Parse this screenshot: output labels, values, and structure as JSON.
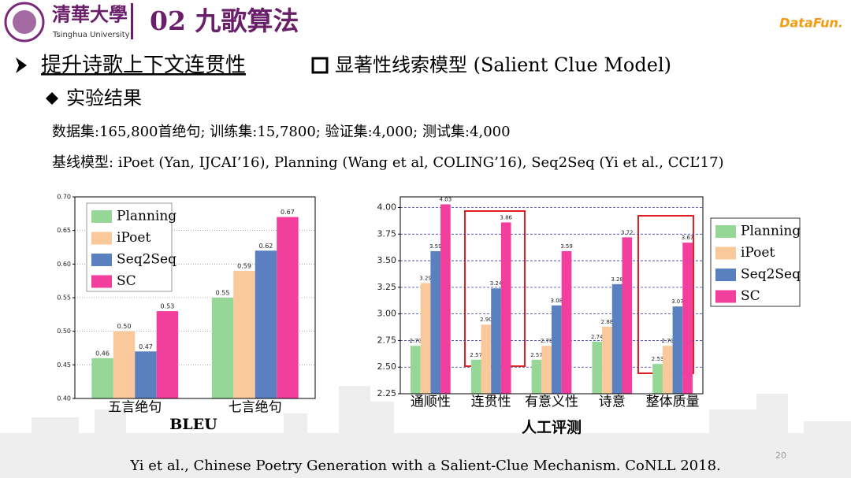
{
  "slide": {
    "section_title": "02 九歌算法",
    "logo_cn": "清華大學",
    "logo_en": "Tsinghua University",
    "brand": "DataFun.",
    "bullet": "提升诗歌上下文连贯性",
    "model": "显著性线索模型  (Salient Clue Model)",
    "sub_bullet": "实验结果",
    "dataset": "数据集:165,800首绝句; 训练集:15,7800; 验证集:4,000; 测试集:4,000",
    "baselines": "基线模型: iPoet (Yan, IJCAI’16), Planning (Wang et al, COLING’16), Seq2Seq (Yi et al., CCL’17)",
    "citation": "Yi et al., Chinese Poetry Generation with a Salient-Clue Mechanism. CoNLL 2018.",
    "page": "20"
  },
  "chart_data": [
    {
      "type": "bar",
      "xlabel": "BLEU",
      "categories": [
        "五言绝句",
        "七言绝句"
      ],
      "series": [
        {
          "name": "Planning",
          "color": "#96d696",
          "values": [
            0.46,
            0.55
          ],
          "value_labels": [
            "0.46",
            "0.55"
          ]
        },
        {
          "name": "iPoet",
          "color": "#f9c99b",
          "values": [
            0.5,
            0.59
          ],
          "value_labels": [
            "0.50",
            "0.59"
          ]
        },
        {
          "name": "Seq2Seq",
          "color": "#5b80c0",
          "values": [
            0.47,
            0.62
          ],
          "value_labels": [
            "0.47",
            "0.62"
          ]
        },
        {
          "name": "SC",
          "color": "#f23f9e",
          "values": [
            0.53,
            0.67
          ],
          "value_labels": [
            "0.53",
            "0.67"
          ]
        }
      ],
      "ylim": [
        0.4,
        0.7
      ],
      "yticks": [
        {
          "value": 0.4,
          "label": "0.40"
        },
        {
          "value": 0.45,
          "label": "0.45"
        },
        {
          "value": 0.5,
          "label": "0.50"
        },
        {
          "value": 0.55,
          "label": "0.55"
        },
        {
          "value": 0.6,
          "label": "0.60"
        },
        {
          "value": 0.65,
          "label": "0.65"
        },
        {
          "value": 0.7,
          "label": "0.70"
        }
      ],
      "grid": true,
      "legend": "upper left"
    },
    {
      "type": "bar",
      "xlabel": "人工评测",
      "categories": [
        "通顺性",
        "连贯性",
        "有意义性",
        "诗意",
        "整体质量"
      ],
      "series": [
        {
          "name": "Planning",
          "color": "#96d696",
          "values": [
            2.7,
            2.57,
            2.57,
            2.74,
            2.53
          ],
          "value_labels": [
            "2.70",
            "2.57",
            "2.57",
            "2.74",
            "2.53"
          ]
        },
        {
          "name": "iPoet",
          "color": "#f9c99b",
          "values": [
            3.29,
            2.9,
            2.7,
            2.88,
            2.7
          ],
          "value_labels": [
            "3.29",
            "2.90",
            "2.70",
            "2.88",
            "2.70"
          ]
        },
        {
          "name": "Seq2Seq",
          "color": "#5b80c0",
          "values": [
            3.59,
            3.24,
            3.08,
            3.28,
            3.07
          ],
          "value_labels": [
            "3.59",
            "3.24",
            "3.08",
            "3.28",
            "3.07"
          ]
        },
        {
          "name": "SC",
          "color": "#f23f9e",
          "values": [
            4.03,
            3.86,
            3.59,
            3.72,
            3.67
          ],
          "value_labels": [
            "4.03",
            "3.86",
            "3.59",
            "3.72",
            "3.67"
          ]
        }
      ],
      "ylim": [
        2.25,
        4.1
      ],
      "yticks": [
        {
          "value": 2.25,
          "label": "2.25"
        },
        {
          "value": 2.5,
          "label": "2.50"
        },
        {
          "value": 2.75,
          "label": "2.75"
        },
        {
          "value": 3.0,
          "label": "3.00"
        },
        {
          "value": 3.25,
          "label": "3.25"
        },
        {
          "value": 3.5,
          "label": "3.50"
        },
        {
          "value": 3.75,
          "label": "3.75"
        },
        {
          "value": 4.0,
          "label": "4.00"
        }
      ],
      "grid": true,
      "legend": "outside right"
    }
  ]
}
